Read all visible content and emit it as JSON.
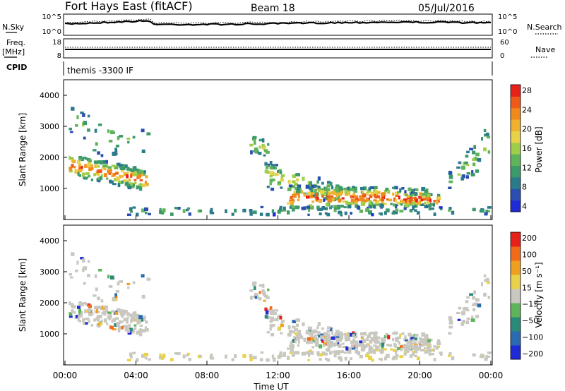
{
  "header": {
    "station": "Fort Hays East (fitACF)",
    "beam": "Beam 18",
    "date": "05/Jul/2016"
  },
  "left_labels": {
    "nsky": "N.Sky",
    "freq": "Freq.",
    "freq_unit": "[MHz]",
    "cpid": "CPID"
  },
  "right_labels": {
    "nsearch": "N.Search",
    "nave": "Nave"
  },
  "cpid_text": "themis -3300 IF",
  "colors": {
    "blue": "#1f2bd6",
    "teal": "#2a7a8a",
    "green": "#5fb35a",
    "yellow": "#e8d24a",
    "orange": "#f08a1c",
    "red": "#e8201a",
    "grey": "#c8c8c0",
    "light_grey": "#e0e0dc"
  },
  "chart_data": [
    {
      "type": "line",
      "panel": "noise",
      "left_ticks": [
        "10^5",
        "10^0"
      ],
      "right_ticks": [
        "10^5",
        "10^0"
      ],
      "note": "N.Sky (solid) and N.Search (dotted) noise levels vs time"
    },
    {
      "type": "line",
      "panel": "freq_nave",
      "left_ticks": [
        "18",
        "8"
      ],
      "right_ticks": [
        "60",
        "0"
      ],
      "note": "Frequency (solid) and Nave (dotted) vs time"
    },
    {
      "type": "heatmap",
      "panel": "power",
      "ylabel": "Slant Range [km]",
      "yticks": [
        "4000",
        "3000",
        "2000",
        "1000"
      ],
      "ylim": [
        0,
        4500
      ],
      "xlim": [
        0,
        24
      ],
      "colorbar_label": "Power [dB]",
      "colorbar_ticks": [
        "28",
        "24",
        "20",
        "16",
        "12",
        "8",
        "4"
      ],
      "colorbar_colors": [
        "#1f2bd6",
        "#2b4fb0",
        "#2a7a8a",
        "#3c9a6a",
        "#5fb35a",
        "#9fcf4a",
        "#e8d24a",
        "#f0b030",
        "#f08a1c",
        "#ee5a1a",
        "#e8201a"
      ]
    },
    {
      "type": "heatmap",
      "panel": "velocity",
      "ylabel": "Slant Range [km]",
      "yticks": [
        "4000",
        "3000",
        "2000",
        "1000"
      ],
      "ylim": [
        0,
        4500
      ],
      "xlim": [
        0,
        24
      ],
      "colorbar_label": "Velocity [m s⁻¹]",
      "colorbar_ticks": [
        "200",
        "100",
        "50",
        "15",
        "−15",
        "−50",
        "−100",
        "−200"
      ],
      "colorbar_colors": [
        "#1f2bd6",
        "#2a6ab0",
        "#2a8a7a",
        "#5fb35a",
        "#c8c8c0",
        "#e8d24a",
        "#f0a020",
        "#f06a1a",
        "#e8201a"
      ]
    }
  ],
  "xaxis": {
    "ticks": [
      "00:00",
      "04:00",
      "08:00",
      "12:00",
      "16:00",
      "20:00",
      "00:00"
    ],
    "label": "Time UT"
  }
}
